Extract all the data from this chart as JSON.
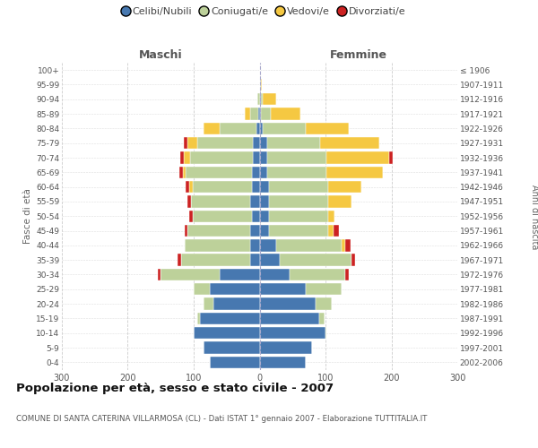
{
  "age_groups_bottom_top": [
    "0-4",
    "5-9",
    "10-14",
    "15-19",
    "20-24",
    "25-29",
    "30-34",
    "35-39",
    "40-44",
    "45-49",
    "50-54",
    "55-59",
    "60-64",
    "65-69",
    "70-74",
    "75-79",
    "80-84",
    "85-89",
    "90-94",
    "95-99",
    "100+"
  ],
  "birth_years_bottom_top": [
    "2002-2006",
    "1997-2001",
    "1992-1996",
    "1987-1991",
    "1982-1986",
    "1977-1981",
    "1972-1976",
    "1967-1971",
    "1962-1966",
    "1957-1961",
    "1952-1956",
    "1947-1951",
    "1942-1946",
    "1937-1941",
    "1932-1936",
    "1927-1931",
    "1922-1926",
    "1917-1921",
    "1912-1916",
    "1907-1911",
    "≤ 1906"
  ],
  "maschi_celibi": [
    75,
    85,
    100,
    90,
    70,
    75,
    60,
    14,
    14,
    14,
    12,
    14,
    12,
    12,
    10,
    10,
    5,
    2,
    0,
    0,
    0
  ],
  "maschi_coniugati": [
    0,
    0,
    0,
    5,
    15,
    25,
    90,
    105,
    100,
    95,
    90,
    90,
    90,
    100,
    95,
    85,
    55,
    12,
    3,
    0,
    0
  ],
  "maschi_vedovi": [
    0,
    0,
    0,
    0,
    0,
    0,
    0,
    0,
    0,
    0,
    0,
    0,
    5,
    5,
    10,
    15,
    25,
    8,
    0,
    0,
    0
  ],
  "maschi_divorziati": [
    0,
    0,
    0,
    0,
    0,
    0,
    5,
    5,
    0,
    5,
    5,
    5,
    5,
    5,
    5,
    5,
    0,
    0,
    0,
    0,
    0
  ],
  "femmine_nubili": [
    70,
    80,
    100,
    90,
    85,
    70,
    45,
    30,
    25,
    14,
    14,
    14,
    14,
    12,
    12,
    12,
    5,
    2,
    2,
    0,
    0
  ],
  "femmine_coniugate": [
    0,
    0,
    2,
    8,
    25,
    55,
    85,
    110,
    100,
    90,
    90,
    90,
    90,
    90,
    90,
    80,
    65,
    15,
    3,
    2,
    0
  ],
  "femmine_vedove": [
    0,
    0,
    0,
    0,
    0,
    0,
    0,
    0,
    5,
    8,
    10,
    35,
    50,
    85,
    95,
    90,
    65,
    45,
    20,
    2,
    0
  ],
  "femmine_divorziate": [
    0,
    0,
    0,
    0,
    0,
    0,
    5,
    5,
    8,
    8,
    0,
    0,
    0,
    0,
    5,
    0,
    0,
    0,
    0,
    0,
    0
  ],
  "color_celibi": "#4778b0",
  "color_coniugati": "#bdd19a",
  "color_vedovi": "#f5c842",
  "color_divorziati": "#cc2222",
  "title": "Popolazione per età, sesso e stato civile - 2007",
  "subtitle": "COMUNE DI SANTA CATERINA VILLARMOSA (CL) - Dati ISTAT 1° gennaio 2007 - Elaborazione TUTTITALIA.IT",
  "label_maschi": "Maschi",
  "label_femmine": "Femmine",
  "label_fasce": "Fasce di età",
  "label_anni": "Anni di nascita",
  "legend_labels": [
    "Celibi/Nubili",
    "Coniugati/e",
    "Vedovi/e",
    "Divorziati/e"
  ],
  "xlim": 300,
  "bg_color": "#ffffff",
  "plot_bg": "#ffffff"
}
